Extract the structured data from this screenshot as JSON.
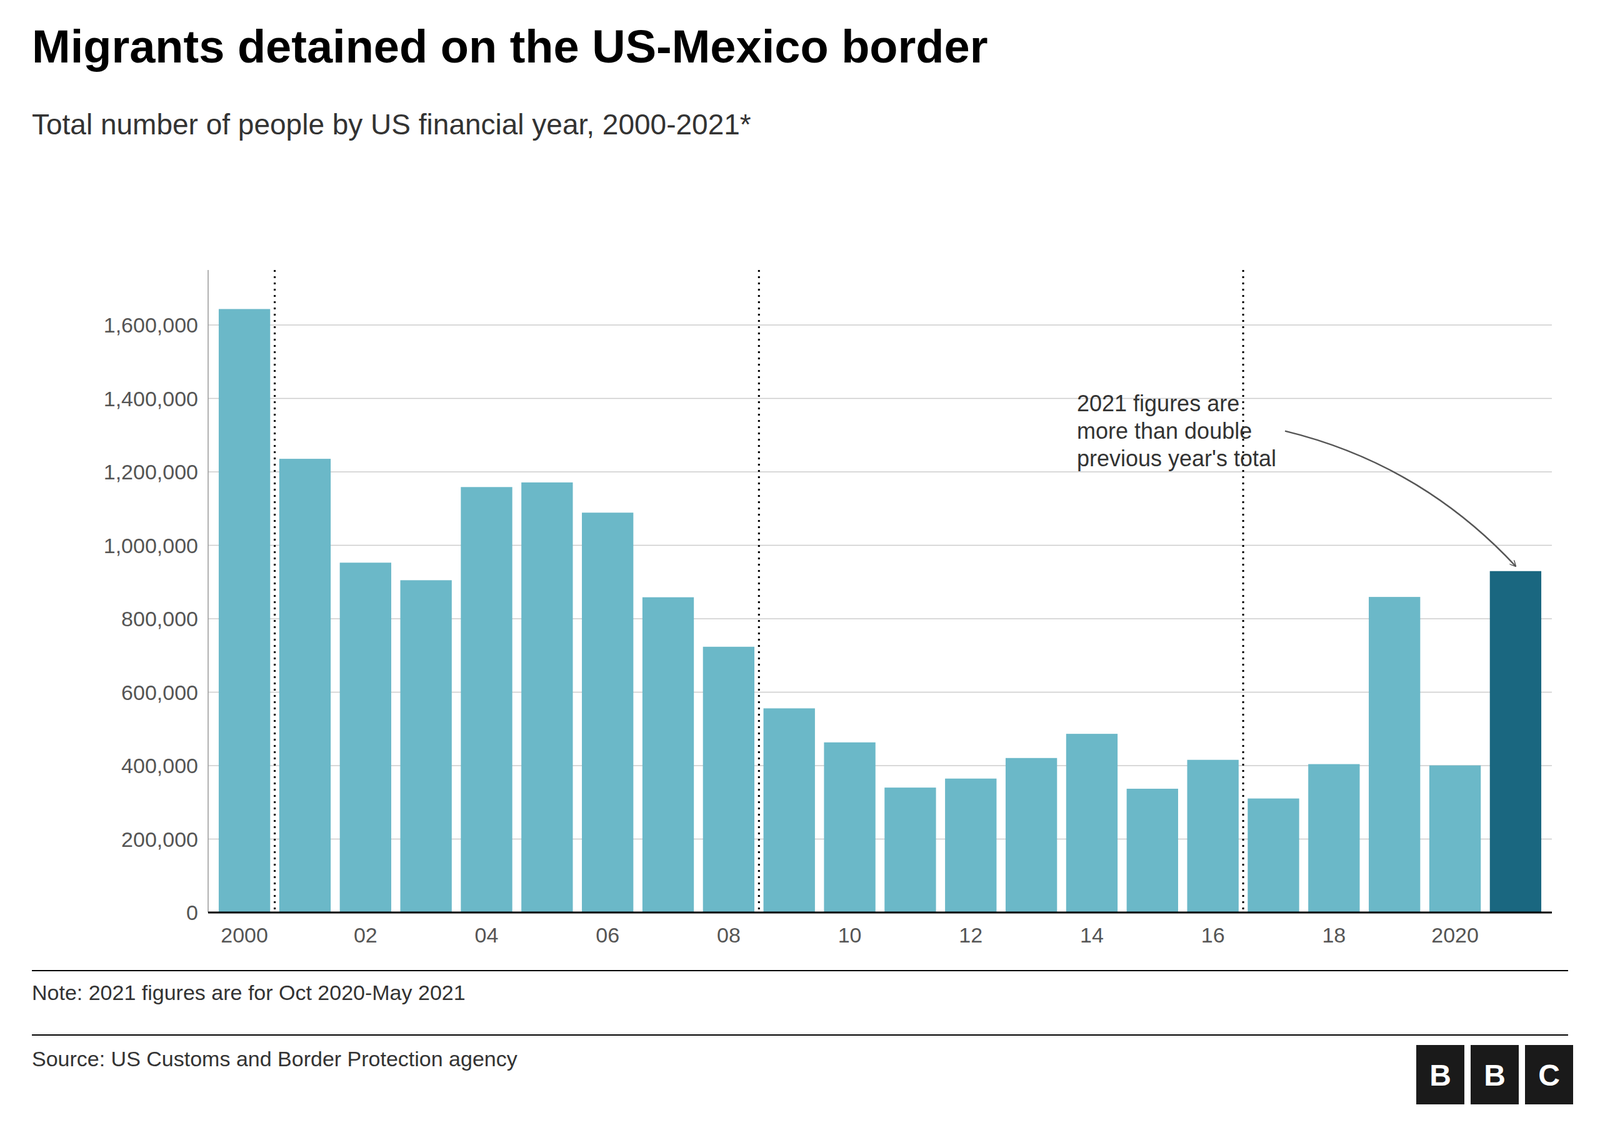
{
  "chart_data": {
    "type": "bar",
    "title": "Migrants detained on the US-Mexico border",
    "subtitle": "Total number of people by US financial year, 2000-2021*",
    "note": "Note: 2021 figures are for Oct 2020-May 2021",
    "source": "Source: US Customs and Border Protection agency",
    "annotation": "2021 figures are\nmore than double\nprevious year's total",
    "logo": "BBC",
    "x": [
      2000,
      2001,
      2002,
      2003,
      2004,
      2005,
      2006,
      2007,
      2008,
      2009,
      2010,
      2011,
      2012,
      2013,
      2014,
      2015,
      2016,
      2017,
      2018,
      2019,
      2020,
      2021
    ],
    "values": [
      1643679,
      1235718,
      952876,
      905065,
      1158802,
      1171428,
      1089092,
      858638,
      723825,
      556041,
      463382,
      340252,
      364768,
      420789,
      486651,
      337117,
      415816,
      310531,
      404142,
      859501,
      400651,
      929868
    ],
    "colors": [
      "#6bb8c8",
      "#6bb8c8",
      "#6bb8c8",
      "#6bb8c8",
      "#6bb8c8",
      "#6bb8c8",
      "#6bb8c8",
      "#6bb8c8",
      "#6bb8c8",
      "#6bb8c8",
      "#6bb8c8",
      "#6bb8c8",
      "#6bb8c8",
      "#6bb8c8",
      "#6bb8c8",
      "#6bb8c8",
      "#6bb8c8",
      "#6bb8c8",
      "#6bb8c8",
      "#6bb8c8",
      "#6bb8c8",
      "#1a6780"
    ],
    "x_lines": [
      2000.5,
      2008.5,
      2016.5
    ],
    "xlim": [
      1999.4,
      2021.6
    ],
    "xticks": [
      2000,
      {
        "value": 2002,
        "label": "02"
      },
      {
        "value": 2004,
        "label": "04"
      },
      {
        "value": 2006,
        "label": "06"
      },
      {
        "value": 2008,
        "label": "08"
      },
      {
        "value": 2010,
        "label": "10"
      },
      {
        "value": 2012,
        "label": "12"
      },
      {
        "value": 2014,
        "label": "14"
      },
      {
        "value": 2016,
        "label": "16"
      },
      {
        "value": 2018,
        "label": "18"
      },
      2020
    ],
    "ylim": [
      0,
      1750000
    ],
    "yticks": [
      0,
      {
        "value": 200000,
        "label": "200,000"
      },
      {
        "value": 400000,
        "label": "400,000"
      },
      {
        "value": 600000,
        "label": "600,000"
      },
      {
        "value": 800000,
        "label": "800,000"
      },
      {
        "value": 1000000,
        "label": "1,000,000"
      },
      {
        "value": 1200000,
        "label": "1,200,000"
      },
      {
        "value": 1400000,
        "label": "1,400,000"
      },
      {
        "value": 1600000,
        "label": "1,600,000"
      }
    ],
    "grid": true
  }
}
